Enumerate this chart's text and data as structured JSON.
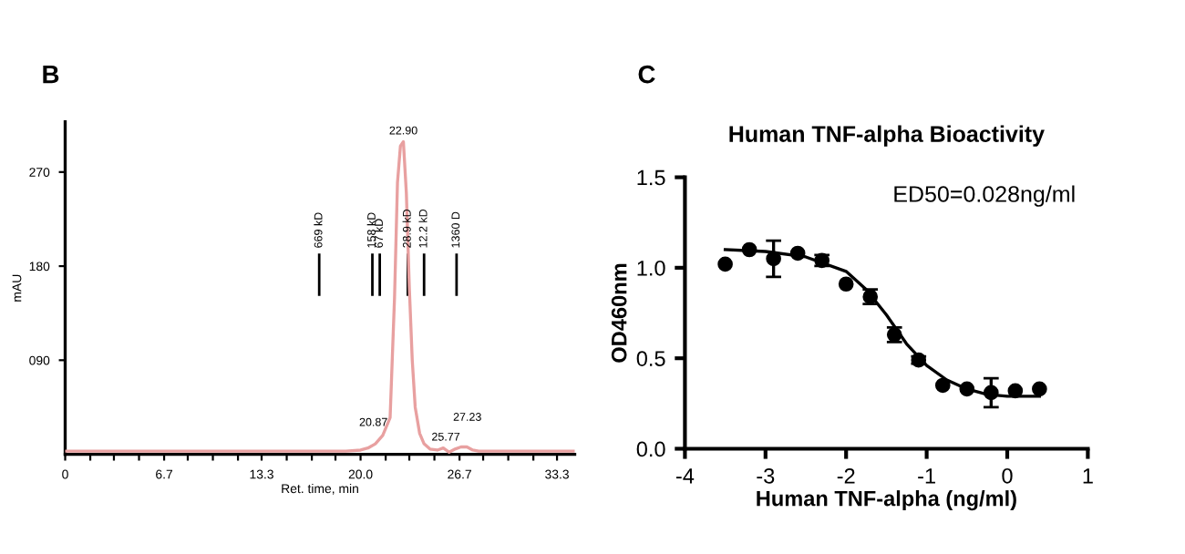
{
  "chart_data": [
    {
      "type": "line",
      "xlabel": "Ret. time, min",
      "ylabel": "mAU",
      "annotations": [
        "B",
        {
          "text": "22.90",
          "x": 22.9,
          "y": 299
        },
        {
          "text": "20.87",
          "x": 20.87,
          "y": 20
        },
        {
          "text": "25.77",
          "x": 25.77,
          "y": 6
        },
        {
          "text": "27.23",
          "x": 27.23,
          "y": 8
        }
      ],
      "xlim": [
        0,
        34.5
      ],
      "ylim": [
        0,
        318
      ],
      "xticks": [
        0,
        {
          "value": 1.7,
          "label": null
        },
        {
          "value": 3.3,
          "label": null
        },
        {
          "value": 5.0,
          "label": null
        },
        6.7,
        {
          "value": 8.3,
          "label": null
        },
        {
          "value": 10.0,
          "label": null
        },
        {
          "value": 11.7,
          "label": null
        },
        13.3,
        {
          "value": 15.0,
          "label": null
        },
        {
          "value": 16.7,
          "label": null
        },
        {
          "value": 18.3,
          "label": null
        },
        {
          "value": 20.0,
          "label": "20.0"
        },
        {
          "value": 21.7,
          "label": null
        },
        {
          "value": 23.3,
          "label": null
        },
        {
          "value": 25.0,
          "label": null
        },
        26.7,
        {
          "value": 28.3,
          "label": null
        },
        {
          "value": 30.0,
          "label": null
        },
        {
          "value": 31.7,
          "label": null
        },
        33.3
      ],
      "yticks": [
        {
          "value": 90,
          "label": "090"
        },
        180,
        270
      ],
      "ref_lines": [
        {
          "axis": "x",
          "value": 17.2,
          "label": "669 kD",
          "color": "#000000"
        },
        {
          "axis": "x",
          "value": 20.8,
          "label": "158 kD",
          "color": "#000000"
        },
        {
          "axis": "x",
          "value": 21.3,
          "label": "67 kD",
          "color": "#000000"
        },
        {
          "axis": "x",
          "value": 23.2,
          "label": "28.9 kD",
          "color": "#000000"
        },
        {
          "axis": "x",
          "value": 24.3,
          "label": "12.2 kD",
          "color": "#000000"
        },
        {
          "axis": "x",
          "value": 26.5,
          "label": "1360 D",
          "color": "#000000"
        }
      ],
      "series": [
        {
          "color": "#e8a0a0",
          "x": [
            0,
            5,
            10,
            15,
            19,
            20,
            20.5,
            21,
            21.5,
            22,
            22.3,
            22.5,
            22.7,
            22.9,
            23.1,
            23.3,
            23.5,
            23.7,
            24,
            24.3,
            24.7,
            25.2,
            25.6,
            26,
            26.4,
            26.8,
            27.2,
            27.6,
            28,
            30,
            34.5
          ],
          "values": [
            3,
            3,
            3,
            3,
            3,
            4,
            6,
            10,
            18,
            35,
            150,
            260,
            295,
            299,
            250,
            160,
            90,
            45,
            20,
            10,
            5,
            4,
            6,
            2,
            5,
            7,
            7,
            4,
            3,
            3,
            3
          ]
        }
      ]
    },
    {
      "type": "scatter",
      "title": "Human TNF-alpha Bioactivity",
      "xlabel": "Human TNF-alpha (ng/ml)",
      "ylabel": "OD460nm",
      "annotations": [
        "C",
        "ED50=0.028ng/ml"
      ],
      "xlim": [
        -4,
        1
      ],
      "ylim": [
        0,
        1.5
      ],
      "xticks": [
        -4,
        -3,
        -2,
        -1,
        0,
        1
      ],
      "yticks": [
        {
          "value": 0,
          "label": "0.0"
        },
        0.5,
        {
          "value": 1,
          "label": "1.0"
        },
        1.5
      ],
      "series": [
        {
          "type": "scatter",
          "marker": "circle",
          "color": "#000000",
          "x": [
            -3.5,
            -3.2,
            -2.9,
            -2.6,
            -2.3,
            -2.0,
            -1.7,
            -1.4,
            -1.1,
            -0.8,
            -0.5,
            -0.2,
            0.1,
            0.4
          ],
          "values": [
            1.02,
            1.1,
            1.05,
            1.08,
            1.04,
            0.91,
            0.84,
            0.63,
            0.49,
            0.35,
            0.33,
            0.31,
            0.32,
            0.33
          ],
          "errors": [
            null,
            null,
            0.1,
            null,
            0.03,
            null,
            0.04,
            0.04,
            0.02,
            null,
            null,
            0.08,
            null,
            null
          ]
        },
        {
          "type": "line",
          "color": "#000000",
          "x": [
            -3.5,
            -3.0,
            -2.5,
            -2.0,
            -1.75,
            -1.5,
            -1.25,
            -1.0,
            -0.75,
            -0.5,
            -0.25,
            0,
            0.4
          ],
          "values": [
            1.1,
            1.09,
            1.06,
            0.98,
            0.88,
            0.74,
            0.58,
            0.46,
            0.38,
            0.33,
            0.3,
            0.29,
            0.29
          ]
        }
      ]
    }
  ]
}
